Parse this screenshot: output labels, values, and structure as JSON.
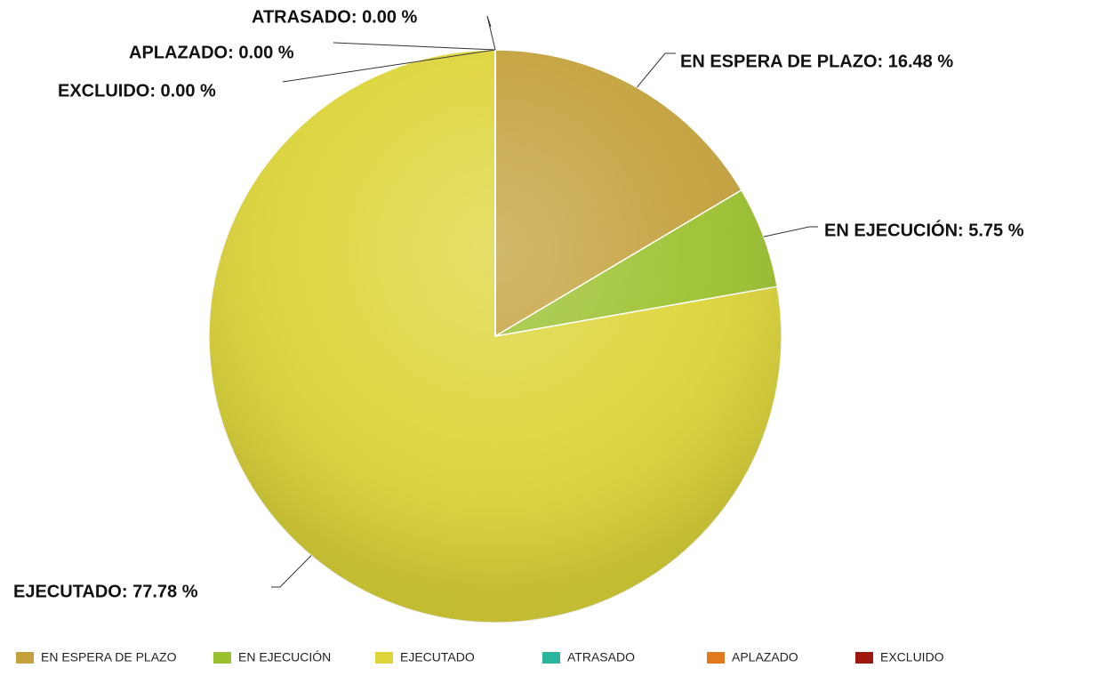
{
  "chart_data": {
    "type": "pie",
    "categories": [
      "EN ESPERA DE PLAZO",
      "EN EJECUCIÓN",
      "EJECUTADO",
      "ATRASADO",
      "APLAZADO",
      "EXCLUIDO"
    ],
    "values": [
      16.48,
      5.75,
      77.78,
      0.0,
      0.0,
      0.0
    ],
    "value_labels": [
      "EN ESPERA DE PLAZO: 16.48 %",
      "EN EJECUCIÓN: 5.75 %",
      "EJECUTADO: 77.78 %",
      "ATRASADO: 0.00 %",
      "APLAZADO: 0.00 %",
      "EXCLUIDO: 0.00 %"
    ],
    "colors": [
      "#c4a13c",
      "#9cc12f",
      "#ddd53a",
      "#2bb59c",
      "#e07a1e",
      "#9e160e"
    ],
    "legend": "bottom"
  }
}
